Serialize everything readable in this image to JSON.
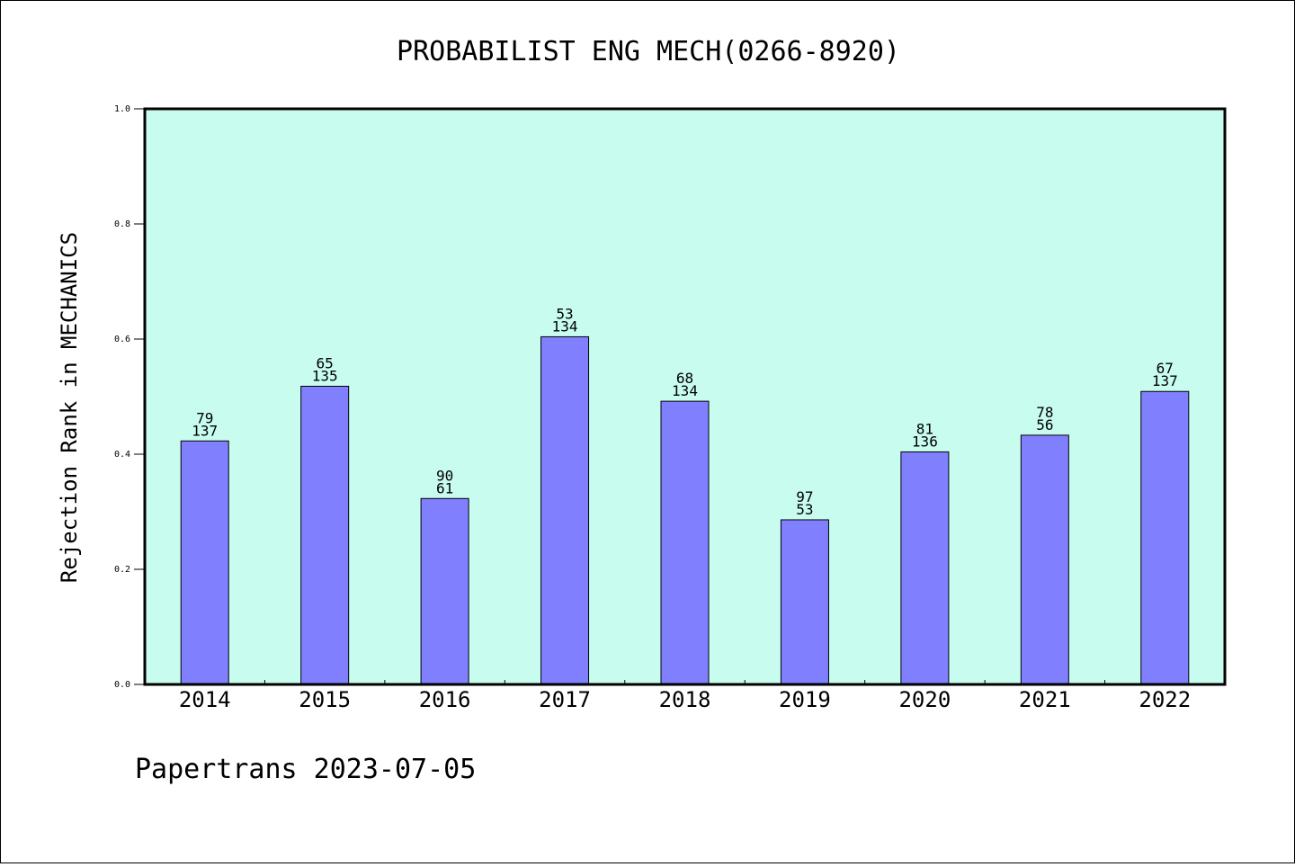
{
  "chart_data": {
    "type": "bar",
    "title": "PROBABILIST ENG MECH(0266-8920)",
    "ylabel": "Rejection Rank in MECHANICS",
    "xlabel": "",
    "ylim": [
      0,
      1.0
    ],
    "yticks": [
      "0.0",
      "0.2",
      "0.4",
      "0.6",
      "0.8",
      "1.0"
    ],
    "categories": [
      "2014",
      "2015",
      "2016",
      "2017",
      "2018",
      "2019",
      "2020",
      "2021",
      "2022"
    ],
    "values": [
      0.423,
      0.518,
      0.323,
      0.604,
      0.492,
      0.286,
      0.404,
      0.433,
      0.509
    ],
    "labels_top": [
      "79",
      "65",
      "90",
      "53",
      "68",
      "97",
      "81",
      "78",
      "67"
    ],
    "labels_bottom": [
      "137",
      "135",
      "61",
      "134",
      "134",
      "53",
      "136",
      "56",
      "137"
    ],
    "colors": {
      "plot_bg": "#c8fcee",
      "bar": "#8080ff",
      "bar_edge": "#000000"
    },
    "grid": false,
    "legend": "none"
  },
  "footer": "Papertrans 2023-07-05"
}
